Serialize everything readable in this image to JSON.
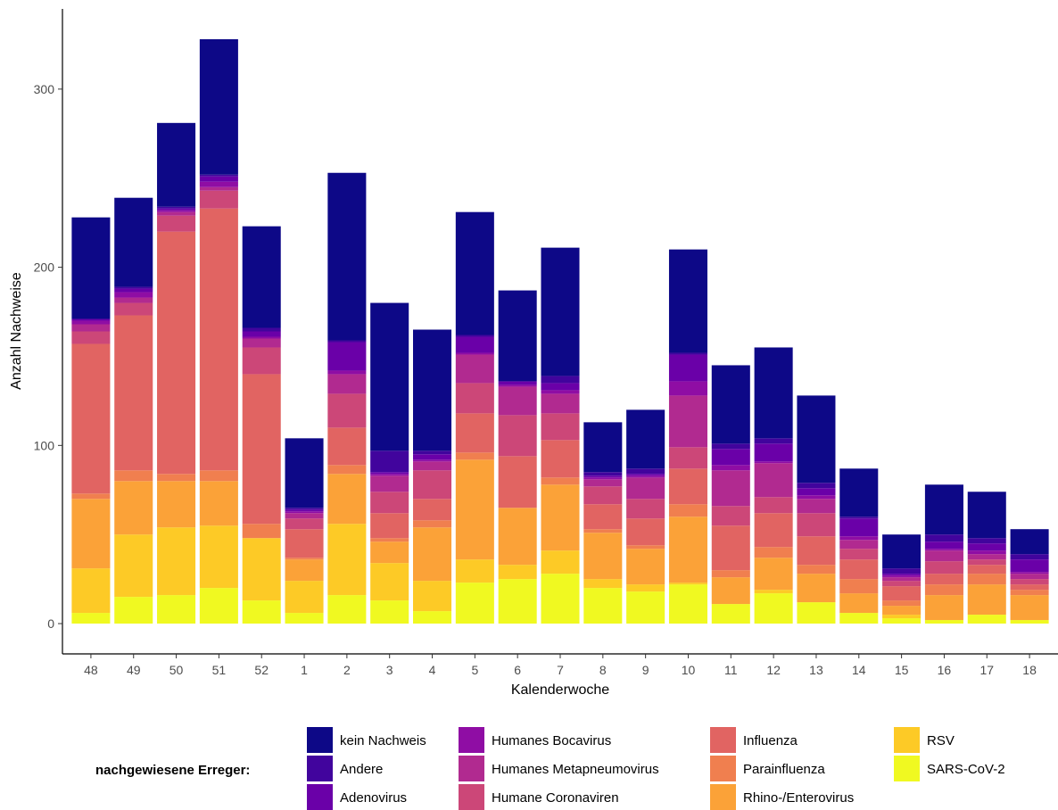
{
  "chart_data": {
    "type": "bar",
    "stacked": true,
    "xlabel": "Kalenderwoche",
    "ylabel": "Anzahl Nachweise",
    "ylim": [
      -17,
      345
    ],
    "yticks": [
      0,
      100,
      200,
      300
    ],
    "grid": false,
    "legend_position": "bottom",
    "legend_title": "nachgewiesene Erreger:",
    "categories": [
      "48",
      "49",
      "50",
      "51",
      "52",
      "1",
      "2",
      "3",
      "4",
      "5",
      "6",
      "7",
      "8",
      "9",
      "10",
      "11",
      "12",
      "13",
      "14",
      "15",
      "16",
      "17",
      "18"
    ],
    "series": [
      {
        "name": "SARS-CoV-2",
        "color": "#f0f921",
        "values": [
          6,
          15,
          16,
          20,
          13,
          6,
          16,
          13,
          7,
          23,
          25,
          28,
          20,
          18,
          22,
          11,
          17,
          12,
          6,
          3,
          2,
          5,
          2
        ]
      },
      {
        "name": "RSV",
        "color": "#fdca26",
        "values": [
          25,
          35,
          38,
          35,
          35,
          18,
          40,
          21,
          17,
          13,
          8,
          13,
          5,
          4,
          1,
          0,
          2,
          0,
          0,
          2,
          0,
          0,
          0
        ]
      },
      {
        "name": "Rhino-/Enterovirus",
        "color": "#fba238",
        "values": [
          39,
          30,
          26,
          25,
          0,
          12,
          28,
          12,
          30,
          56,
          32,
          37,
          26,
          20,
          37,
          15,
          18,
          16,
          11,
          5,
          14,
          17,
          14
        ]
      },
      {
        "name": "Parainfluenza",
        "color": "#f07f4f",
        "values": [
          3,
          6,
          4,
          6,
          8,
          1,
          5,
          2,
          4,
          4,
          0,
          4,
          2,
          2,
          7,
          4,
          6,
          5,
          8,
          3,
          6,
          6,
          3
        ]
      },
      {
        "name": "Influenza",
        "color": "#e16462",
        "values": [
          84,
          87,
          136,
          147,
          84,
          16,
          21,
          14,
          12,
          22,
          29,
          21,
          14,
          15,
          20,
          25,
          19,
          16,
          11,
          8,
          6,
          5,
          3
        ]
      },
      {
        "name": "Humane Coronaviren",
        "color": "#cc4778",
        "values": [
          7,
          7,
          9,
          10,
          15,
          6,
          19,
          12,
          16,
          17,
          23,
          15,
          10,
          11,
          12,
          11,
          9,
          13,
          6,
          3,
          7,
          3,
          3
        ]
      },
      {
        "name": "Humanes Metapneumovirus",
        "color": "#b12a90",
        "values": [
          4,
          3,
          2,
          2,
          5,
          3,
          11,
          9,
          5,
          16,
          16,
          11,
          4,
          12,
          29,
          20,
          19,
          8,
          5,
          2,
          6,
          3,
          3
        ]
      },
      {
        "name": "Humanes Bocavirus",
        "color": "#8f0da4",
        "values": [
          2,
          3,
          1,
          3,
          1,
          1,
          2,
          1,
          1,
          1,
          1,
          2,
          1,
          1,
          8,
          3,
          1,
          2,
          2,
          1,
          1,
          2,
          1
        ]
      },
      {
        "name": "Adenovirus",
        "color": "#6a00a8",
        "values": [
          1,
          2,
          1,
          3,
          3,
          1,
          16,
          1,
          3,
          9,
          2,
          4,
          1,
          1,
          15,
          9,
          10,
          4,
          10,
          1,
          4,
          4,
          7
        ]
      },
      {
        "name": "Andere",
        "color": "#41049d",
        "values": [
          0,
          1,
          1,
          1,
          2,
          1,
          1,
          12,
          2,
          1,
          0,
          4,
          2,
          3,
          1,
          3,
          3,
          3,
          1,
          3,
          4,
          3,
          3
        ]
      },
      {
        "name": "kein Nachweis",
        "color": "#0d0887",
        "values": [
          57,
          50,
          47,
          76,
          57,
          39,
          94,
          83,
          68,
          69,
          51,
          72,
          28,
          33,
          58,
          44,
          51,
          49,
          27,
          19,
          28,
          26,
          14
        ]
      }
    ],
    "legend_order": [
      "kein Nachweis",
      "Andere",
      "Adenovirus",
      "Humanes Bocavirus",
      "Humanes Metapneumovirus",
      "Humane Coronaviren",
      "Influenza",
      "Parainfluenza",
      "Rhino-/Enterovirus",
      "RSV",
      "SARS-CoV-2"
    ]
  }
}
